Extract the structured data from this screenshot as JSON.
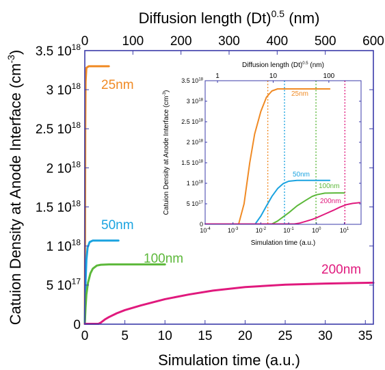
{
  "chart_data": [
    {
      "type": "line",
      "xlabel": "Simulation time (a.u.)",
      "ylabel": "Catuion Density at Anode Interface (cm",
      "ylabel_sup": "-3",
      "ylabel_close": ")",
      "x2label": "Diffusion length (Dt)",
      "x2label_sup": "0.5",
      "x2label_unit": "(nm)",
      "xlim": [
        0,
        36
      ],
      "ylim": [
        0,
        3.5e+18
      ],
      "x2lim": [
        0,
        600
      ],
      "xticks": [
        0,
        5,
        10,
        15,
        20,
        25,
        30,
        35
      ],
      "x2ticks": [
        0,
        100,
        200,
        300,
        400,
        500,
        600
      ],
      "yticks": [
        {
          "value": 0,
          "label": "0"
        },
        {
          "value": 5e+17,
          "label": "5 10",
          "sup": "17"
        },
        {
          "value": 1e+18,
          "label": "1 10",
          "sup": "18"
        },
        {
          "value": 1.5e+18,
          "label": "1.5 10",
          "sup": "18"
        },
        {
          "value": 2e+18,
          "label": "2 10",
          "sup": "18"
        },
        {
          "value": 2.5e+18,
          "label": "2.5 10",
          "sup": "18"
        },
        {
          "value": 3e+18,
          "label": "3 10",
          "sup": "18"
        },
        {
          "value": 3.5e+18,
          "label": "3.5 10",
          "sup": "18"
        }
      ],
      "series": [
        {
          "name": "25nm",
          "color": "#f08a24",
          "x": [
            0,
            0.02,
            0.04,
            0.06,
            0.1,
            0.2,
            0.5,
            1,
            2,
            3
          ],
          "y": [
            0,
            5e+17,
            1.5e+18,
            2.5e+18,
            3.1e+18,
            3.28e+18,
            3.3e+18,
            3.3e+18,
            3.3e+18,
            3.3e+18
          ]
        },
        {
          "name": "50nm",
          "color": "#1aa3e0",
          "x": [
            0,
            0.05,
            0.1,
            0.2,
            0.35,
            0.6,
            1,
            2,
            3,
            4.2
          ],
          "y": [
            0,
            3e+17,
            5.5e+17,
            8.2e+17,
            9.8e+17,
            1.05e+18,
            1.07e+18,
            1.07e+18,
            1.07e+18,
            1.07e+18
          ]
        },
        {
          "name": "100nm",
          "color": "#5cb83a",
          "x": [
            0,
            0.1,
            0.2,
            0.4,
            0.7,
            1,
            1.5,
            2,
            3,
            4,
            6,
            8,
            10
          ],
          "y": [
            0,
            2.2e+17,
            3.8e+17,
            5.3e+17,
            6.5e+17,
            7.1e+17,
            7.5e+17,
            7.6e+17,
            7.65e+17,
            7.65e+17,
            7.65e+17,
            7.65e+17,
            7.65e+17
          ]
        },
        {
          "name": "200nm",
          "color": "#e0197d",
          "x": [
            0,
            1,
            1.7,
            2,
            2.5,
            3,
            4,
            5,
            7,
            10,
            13,
            16,
            20,
            25,
            30,
            36
          ],
          "y": [
            0,
            0,
            0,
            2e+16,
            6e+16,
            9e+16,
            1.4e+17,
            1.8e+17,
            2.4e+17,
            3.2e+17,
            3.8e+17,
            4.3e+17,
            4.75e+17,
            5.05e+17,
            5.2e+17,
            5.3e+17
          ]
        }
      ]
    },
    {
      "type": "line",
      "xscale": "log",
      "xlabel": "Simulation time (a.u.)",
      "ylabel": "Catuion Density at Anode Interface (cm",
      "ylabel_sup": "-3",
      "ylabel_close": ")",
      "x2label": "Diffusion length (Dt)",
      "x2label_sup": "0.5",
      "x2label_unit": "(nm)",
      "xlim": [
        0.0001,
        40
      ],
      "ylim": [
        0,
        3.5e+18
      ],
      "x2ticks": [
        {
          "label": "1",
          "position": 0.000278
        },
        {
          "label": "10",
          "position": 0.0278
        },
        {
          "label": "100",
          "position": 2.78
        }
      ],
      "xticks": [
        {
          "value": 0.0001,
          "label": "10",
          "sup": "-4"
        },
        {
          "value": 0.001,
          "label": "10",
          "sup": "-3"
        },
        {
          "value": 0.01,
          "label": "10",
          "sup": "-2"
        },
        {
          "value": 0.1,
          "label": "10",
          "sup": "-1"
        },
        {
          "value": 1,
          "label": "10",
          "sup": "0"
        },
        {
          "value": 10,
          "label": "10",
          "sup": "1"
        }
      ],
      "yticks": [
        {
          "value": 0,
          "label": "0"
        },
        {
          "value": 5e+17,
          "label": "5 10",
          "sup": "17"
        },
        {
          "value": 1e+18,
          "label": "1 10",
          "sup": "18"
        },
        {
          "value": 1.5e+18,
          "label": "1.5 10",
          "sup": "18"
        },
        {
          "value": 2e+18,
          "label": "2 10",
          "sup": "18"
        },
        {
          "value": 2.5e+18,
          "label": "2.5 10",
          "sup": "18"
        },
        {
          "value": 3e+18,
          "label": "3 10",
          "sup": "18"
        },
        {
          "value": 3.5e+18,
          "label": "3.5 10",
          "sup": "18"
        }
      ],
      "vlines": [
        {
          "x": 0.0178,
          "color": "#f08a24"
        },
        {
          "x": 0.071,
          "color": "#1aa3e0"
        },
        {
          "x": 0.96,
          "color": "#5cb83a"
        },
        {
          "x": 10.5,
          "color": "#e0197d"
        }
      ],
      "series": [
        {
          "name": "25nm",
          "color": "#f08a24",
          "x": [
            0.0001,
            0.0016,
            0.0025,
            0.004,
            0.006,
            0.01,
            0.016,
            0.025,
            0.04,
            0.1,
            0.5,
            3
          ],
          "y": [
            0,
            0,
            5e+17,
            1.5e+18,
            2.2e+18,
            2.75e+18,
            3.1e+18,
            3.25e+18,
            3.3e+18,
            3.3e+18,
            3.3e+18,
            3.3e+18
          ]
        },
        {
          "name": "50nm",
          "color": "#1aa3e0",
          "x": [
            0.0001,
            0.0063,
            0.01,
            0.016,
            0.025,
            0.04,
            0.063,
            0.1,
            0.2,
            0.5,
            1,
            3
          ],
          "y": [
            0,
            0,
            2e+17,
            4.5e+17,
            6.8e+17,
            8.7e+17,
            9.9e+17,
            1.05e+18,
            1.07e+18,
            1.07e+18,
            1.07e+18,
            1.07e+18
          ]
        },
        {
          "name": "100nm",
          "color": "#5cb83a",
          "x": [
            0.0001,
            0.025,
            0.04,
            0.063,
            0.1,
            0.2,
            0.4,
            0.7,
            1,
            2,
            5,
            10
          ],
          "y": [
            0,
            0,
            8e+16,
            1.8e+17,
            2.8e+17,
            4.5e+17,
            5.8e+17,
            6.8e+17,
            7.2e+17,
            7.6e+17,
            7.65e+17,
            7.65e+17
          ]
        },
        {
          "name": "200nm",
          "color": "#e0197d",
          "x": [
            0.0001,
            0.16,
            0.25,
            0.4,
            0.7,
            1,
            2,
            4,
            7,
            12,
            20,
            36
          ],
          "y": [
            0,
            0,
            3e+16,
            7e+16,
            1.2e+17,
            1.6e+17,
            2.5e+17,
            3.4e+17,
            4.2e+17,
            4.8e+17,
            5.1e+17,
            5.3e+17
          ]
        }
      ]
    }
  ]
}
